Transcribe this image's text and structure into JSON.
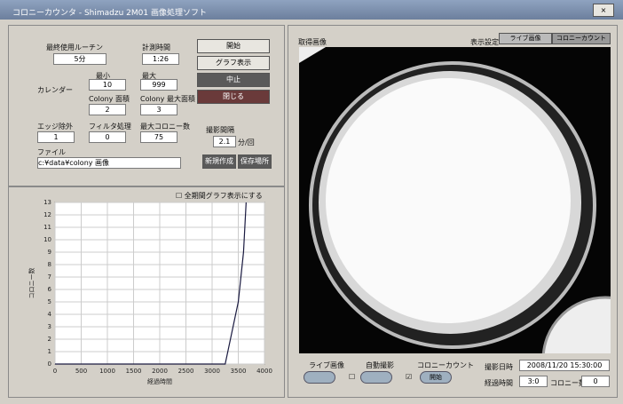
{
  "window": {
    "title": "コロニーカウンタ - Shimadzu 2M01 画像処理ソフト"
  },
  "settings": {
    "last_routine_label": "最終使用ルーチン",
    "last_routine": "5分",
    "measure_time_label": "計測時間",
    "measure_time": "1:26",
    "calendar_label": "カレンダー",
    "min_label": "最小",
    "min": "10",
    "max_label": "最大",
    "max": "999",
    "colony_area_label": "Colony 面積",
    "colony_area": "2",
    "colony_max_label": "Colony 最大面積",
    "colony_max": "3",
    "edge_label": "エッジ除外",
    "edge": "1",
    "filter_label": "フィルタ処理",
    "filter": "0",
    "max_count_label": "最大コロニー数",
    "max_count": "75",
    "file_label": "ファイル",
    "file": "c:¥data¥colony 画像",
    "interval_label": "撮影間隔",
    "interval": "2.1",
    "interval_unit": "分/回"
  },
  "buttons": [
    "開始",
    "グラフ表示",
    "中止",
    "閉じる",
    "新規作成",
    "保存場所"
  ],
  "graph_option": "全期間グラフ表示にする",
  "chart_data": {
    "type": "line",
    "x_label": "経過時間",
    "y_label": "コロニー数",
    "x": [
      0,
      1000,
      2000,
      3000,
      3250,
      3300,
      3350,
      3400,
      3450,
      3500,
      3550,
      3600,
      3650
    ],
    "series": [
      {
        "name": "コロニー数",
        "color": "#1a1a40",
        "values": [
          0,
          0,
          0,
          0,
          0,
          1,
          2,
          3,
          4,
          5,
          7,
          9,
          13
        ]
      }
    ],
    "xlim": [
      0,
      4000
    ],
    "xticks": [
      0,
      500,
      1000,
      1500,
      2000,
      2500,
      3000,
      3500,
      4000
    ],
    "ylim": [
      0,
      13
    ],
    "yticks": [
      0,
      1,
      2,
      3,
      4,
      5,
      6,
      7,
      8,
      9,
      10,
      11,
      12,
      13
    ],
    "grid": true
  },
  "image_panel": {
    "title": "取得画像",
    "view_label": "表示設定",
    "tabs": [
      "ライブ画像",
      "コロニーカウント"
    ]
  },
  "bottom": {
    "live_label": "ライブ画像",
    "auto_label": "自動撮影",
    "count_label": "コロニーカウント",
    "count_button": "開始",
    "datetime_label": "撮影日時",
    "datetime": "2008/11/20 15:30:00",
    "elapsed_label": "経過時間",
    "elapsed": "3:0",
    "colonies_label": "コロニー数",
    "colonies": "0"
  }
}
